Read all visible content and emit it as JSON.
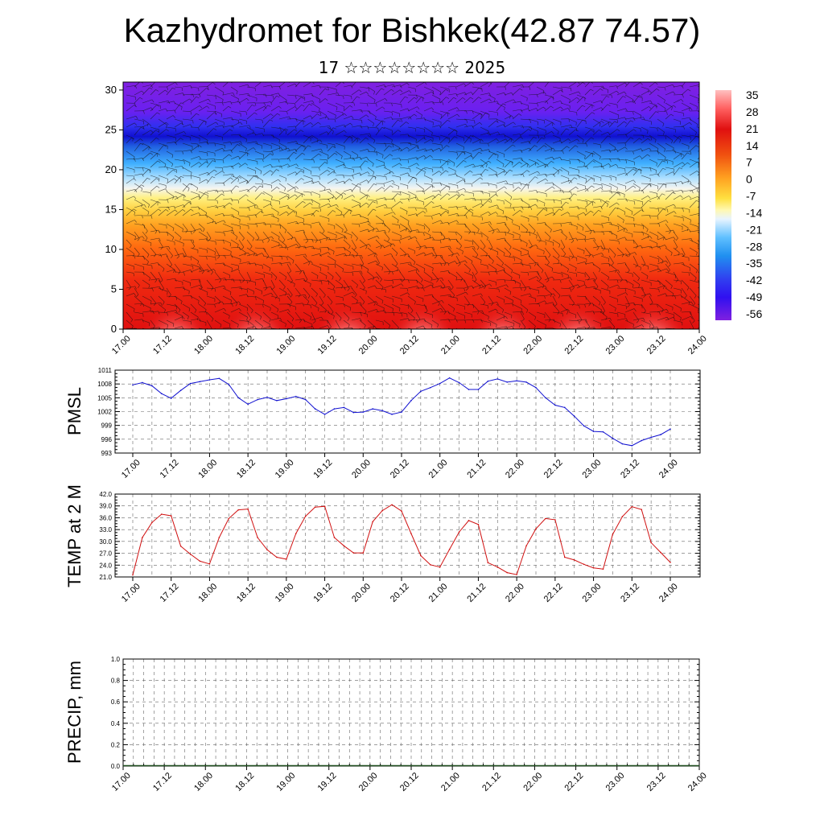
{
  "title": "Kazhydromet for Bishkek(42.87 74.57)",
  "subtitle": "17 ☆☆☆☆☆☆☆☆ 2025",
  "time_ticks": [
    "17.00",
    "17.12",
    "18.00",
    "18.12",
    "19.00",
    "19.12",
    "20.00",
    "20.12",
    "21.00",
    "21.12",
    "22.00",
    "22.12",
    "23.00",
    "23.12",
    "24.00"
  ],
  "colors": {
    "pmsl_line": "#1010d0",
    "temp_line": "#d01010",
    "colorbar_top": "#ffc0c0",
    "colorbar_bottom": "#8020e0"
  },
  "chart_data": [
    {
      "type": "heatmap",
      "title": "Kazhydromet for Bishkek(42.87 74.57)",
      "subtitle": "17 ☆☆☆☆☆☆☆☆ 2025",
      "ylim": [
        0,
        31
      ],
      "y_ticks": [
        "0",
        "5",
        "10",
        "15",
        "20",
        "25",
        "30"
      ],
      "x_ticks": [
        "17.00",
        "17.12",
        "18.00",
        "18.12",
        "19.00",
        "19.12",
        "20.00",
        "20.12",
        "21.00",
        "21.12",
        "22.00",
        "22.12",
        "23.00",
        "23.12",
        "24.00"
      ],
      "colorbar_labels": [
        "35",
        "28",
        "21",
        "14",
        "7",
        "0",
        "-7",
        "-14",
        "-21",
        "-28",
        "-35",
        "-42",
        "-49",
        "-56"
      ],
      "overlay": "wind barbs"
    },
    {
      "type": "line",
      "ylabel": "PMSL",
      "ylim": [
        993,
        1011
      ],
      "y_ticks": [
        "993",
        "996",
        "999",
        "1002",
        "1005",
        "1008",
        "1011"
      ],
      "x_ticks": [
        "17.00",
        "17.12",
        "18.00",
        "18.12",
        "19.00",
        "19.12",
        "20.00",
        "20.12",
        "21.00",
        "21.12",
        "22.00",
        "22.12",
        "23.00",
        "23.12",
        "24.00"
      ],
      "x": [
        0,
        3,
        6,
        9,
        12,
        15,
        18,
        21,
        24,
        27,
        30,
        33,
        36,
        39,
        42,
        45,
        48,
        51,
        54,
        57,
        60,
        63,
        66,
        69,
        72,
        75,
        78,
        81,
        84,
        87,
        90,
        93,
        96,
        99,
        102,
        105,
        108,
        111,
        114,
        117,
        120,
        123,
        126,
        129,
        132,
        135,
        138,
        141,
        144,
        147,
        150,
        153,
        156,
        159,
        162,
        165,
        168
      ],
      "series": [
        {
          "values": [
            1007.8,
            1008.3,
            1007.6,
            1005.9,
            1004.9,
            1006.6,
            1008.1,
            1008.5,
            1008.9,
            1009.2,
            1007.9,
            1005.0,
            1003.6,
            1004.6,
            1005.1,
            1004.4,
            1004.8,
            1005.3,
            1004.6,
            1002.6,
            1001.4,
            1002.6,
            1002.9,
            1001.8,
            1001.9,
            1002.6,
            1002.2,
            1001.4,
            1001.9,
            1004.4,
            1006.4,
            1007.2,
            1008.1,
            1009.3,
            1008.3,
            1006.8,
            1006.8,
            1008.6,
            1009.1,
            1008.4,
            1008.7,
            1008.4,
            1007.2,
            1005.0,
            1003.4,
            1002.9,
            1001.0,
            998.9,
            997.7,
            997.6,
            996.2,
            995.0,
            994.6,
            995.7,
            996.4,
            997.0,
            998.2
          ]
        }
      ]
    },
    {
      "type": "line",
      "ylabel": "TEMP at 2 M",
      "ylim": [
        21,
        42
      ],
      "y_ticks": [
        "21.0",
        "24.0",
        "27.0",
        "30.0",
        "33.0",
        "36.0",
        "39.0",
        "42.0"
      ],
      "x_ticks": [
        "17.00",
        "17.12",
        "18.00",
        "18.12",
        "19.00",
        "19.12",
        "20.00",
        "20.12",
        "21.00",
        "21.12",
        "22.00",
        "22.12",
        "23.00",
        "23.12",
        "24.00"
      ],
      "x": [
        0,
        3,
        6,
        9,
        12,
        15,
        18,
        21,
        24,
        27,
        30,
        33,
        36,
        39,
        42,
        45,
        48,
        51,
        54,
        57,
        60,
        63,
        66,
        69,
        72,
        75,
        78,
        81,
        84,
        87,
        90,
        93,
        96,
        99,
        102,
        105,
        108,
        111,
        114,
        117,
        120,
        123,
        126,
        129,
        132,
        135,
        138,
        141,
        144,
        147,
        150,
        153,
        156,
        159,
        162,
        165,
        168
      ],
      "series": [
        {
          "values": [
            21.5,
            31.0,
            34.8,
            36.9,
            36.5,
            28.8,
            26.8,
            25.0,
            24.3,
            31.0,
            35.8,
            38.0,
            38.2,
            31.0,
            27.9,
            26.0,
            25.5,
            32.0,
            36.4,
            38.7,
            38.9,
            31.0,
            28.9,
            27.1,
            27.1,
            35.0,
            37.8,
            39.3,
            37.7,
            32.0,
            26.4,
            24.1,
            23.5,
            28.0,
            32.4,
            35.3,
            34.3,
            24.6,
            23.5,
            22.1,
            21.6,
            28.9,
            33.2,
            35.8,
            35.5,
            26.0,
            25.3,
            24.2,
            23.3,
            23.0,
            31.8,
            36.3,
            38.8,
            38.1,
            29.7,
            27.2,
            24.7
          ]
        }
      ]
    },
    {
      "type": "line",
      "ylabel": "PRECIP, mm",
      "ylim": [
        0,
        1
      ],
      "y_ticks": [
        "0.0",
        "0.2",
        "0.4",
        "0.6",
        "0.8",
        "1.0"
      ],
      "x_ticks": [
        "17.00",
        "17.12",
        "18.00",
        "18.12",
        "19.00",
        "19.12",
        "20.00",
        "20.12",
        "21.00",
        "21.12",
        "22.00",
        "22.12",
        "23.00",
        "23.12",
        "24.00"
      ],
      "series": [
        {
          "values": [
            0,
            0,
            0,
            0,
            0,
            0,
            0,
            0,
            0,
            0,
            0,
            0,
            0,
            0,
            0
          ]
        }
      ]
    }
  ]
}
